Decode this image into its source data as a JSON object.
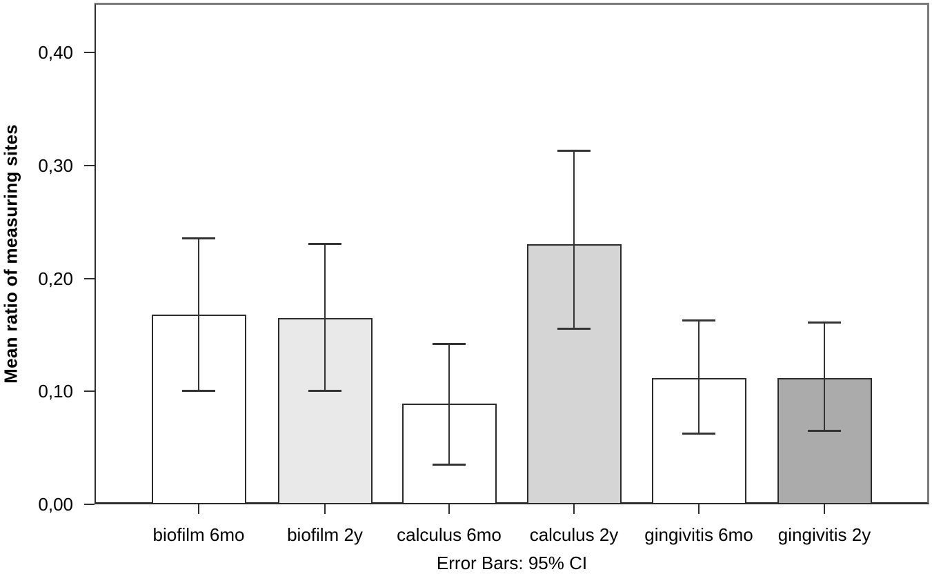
{
  "chart_data": {
    "type": "bar",
    "title": "",
    "xlabel": "",
    "ylabel": "Mean ratio of measuring sites",
    "caption": "Error Bars: 95% CI",
    "categories": [
      "biofilm 6mo",
      "biofilm 2y",
      "calculus 6mo",
      "calculus 2y",
      "gingivitis 6mo",
      "gingivitis 2y"
    ],
    "values": [
      0.168,
      0.165,
      0.089,
      0.23,
      0.112,
      0.112
    ],
    "ci_low": [
      0.1,
      0.1,
      0.035,
      0.155,
      0.062,
      0.065
    ],
    "ci_high": [
      0.236,
      0.231,
      0.142,
      0.313,
      0.163,
      0.161
    ],
    "bar_fill_colors": [
      "#ffffff",
      "#e9e9e9",
      "#ffffff",
      "#d5d5d5",
      "#ffffff",
      "#ababab"
    ],
    "y_ticks": [
      "0,00",
      "0,10",
      "0,20",
      "0,30",
      "0,40"
    ],
    "y_tick_values": [
      0.0,
      0.1,
      0.2,
      0.3,
      0.4
    ],
    "ylim": [
      0,
      0.444
    ],
    "decimal_separator": ",",
    "grid": false,
    "legend_position": "none",
    "error_bars": "95% CI",
    "colors": {
      "axis": "#2e2e2e",
      "frame": "#7b7b7b",
      "bar_border": "#2b2b2b",
      "error_bar": "#333333",
      "text": "#000000",
      "background": "#ffffff"
    }
  }
}
